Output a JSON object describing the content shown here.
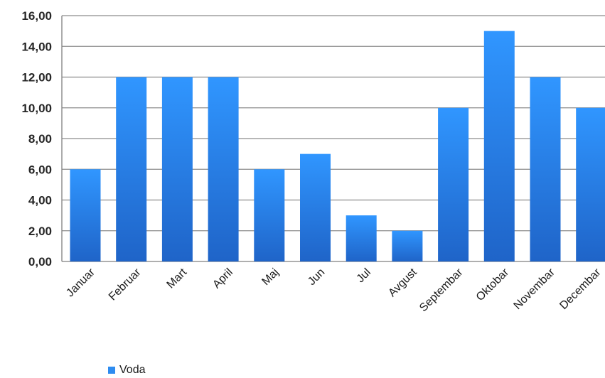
{
  "chart_data": {
    "type": "bar",
    "categories": [
      "Januar",
      "Februar",
      "Mart",
      "April",
      "Maj",
      "Jun",
      "Jul",
      "Avgust",
      "Septembar",
      "Oktobar",
      "Novembar",
      "Decembar"
    ],
    "series": [
      {
        "name": "Voda",
        "values": [
          6,
          12,
          12,
          12,
          6,
          7,
          3,
          2,
          10,
          15,
          12,
          10
        ],
        "color": "#2e8cf0"
      }
    ],
    "yticks": [
      "0,00",
      "2,00",
      "4,00",
      "6,00",
      "8,00",
      "10,00",
      "12,00",
      "14,00",
      "16,00"
    ],
    "ylim": [
      0,
      16
    ],
    "grid": true,
    "legend": "bottom-left",
    "colors": {
      "bar_top": "#3096ff",
      "bar_bottom": "#1f64c8",
      "grid": "#8c8c8c",
      "axis": "#7f7f7f"
    }
  }
}
